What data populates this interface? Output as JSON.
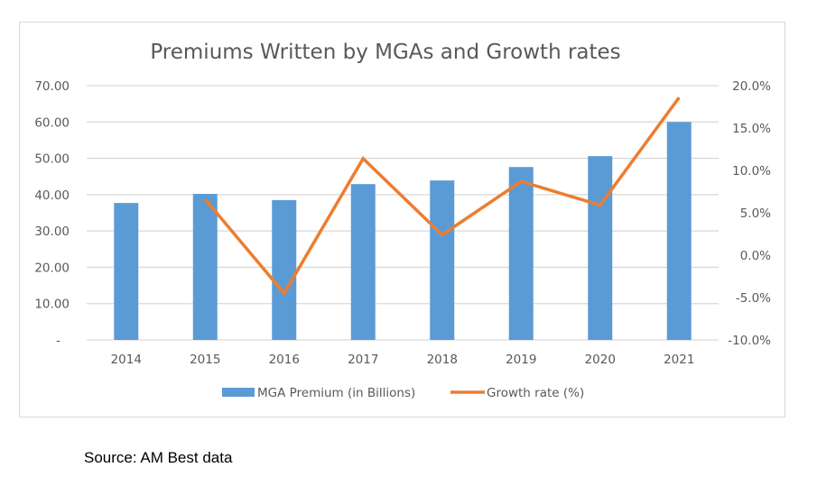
{
  "chart_data": {
    "type": "bar",
    "title": "Premiums Written by MGAs and Growth rates",
    "categories": [
      "2014",
      "2015",
      "2016",
      "2017",
      "2018",
      "2019",
      "2020",
      "2021"
    ],
    "series": [
      {
        "name": "MGA Premium (in Billions)",
        "type": "bar",
        "axis": "left",
        "color": "#5b9bd5",
        "values": [
          37.7,
          40.2,
          38.5,
          42.9,
          43.9,
          47.6,
          50.6,
          60.0
        ]
      },
      {
        "name": "Growth rate (%)",
        "type": "line",
        "axis": "right",
        "color": "#ed7d31",
        "values": [
          null,
          6.6,
          -4.5,
          11.4,
          2.4,
          8.7,
          5.9,
          18.6
        ]
      }
    ],
    "y_left": {
      "ylim": [
        0,
        70
      ],
      "ticks": [
        0,
        10,
        20,
        30,
        40,
        50,
        60,
        70
      ],
      "tick_labels": [
        "-",
        "10.00",
        "20.00",
        "30.00",
        "40.00",
        "50.00",
        "60.00",
        "70.00"
      ]
    },
    "y_right": {
      "ylim": [
        -10,
        20
      ],
      "ticks": [
        -10,
        -5,
        0,
        5,
        10,
        15,
        20
      ],
      "tick_labels": [
        "-10.0%",
        "-5.0%",
        "0.0%",
        "5.0%",
        "10.0%",
        "15.0%",
        "20.0%"
      ]
    },
    "xlabel": "",
    "ylabel": "",
    "grid": true,
    "legend_position": "bottom"
  },
  "source_note": "Source: AM Best data"
}
